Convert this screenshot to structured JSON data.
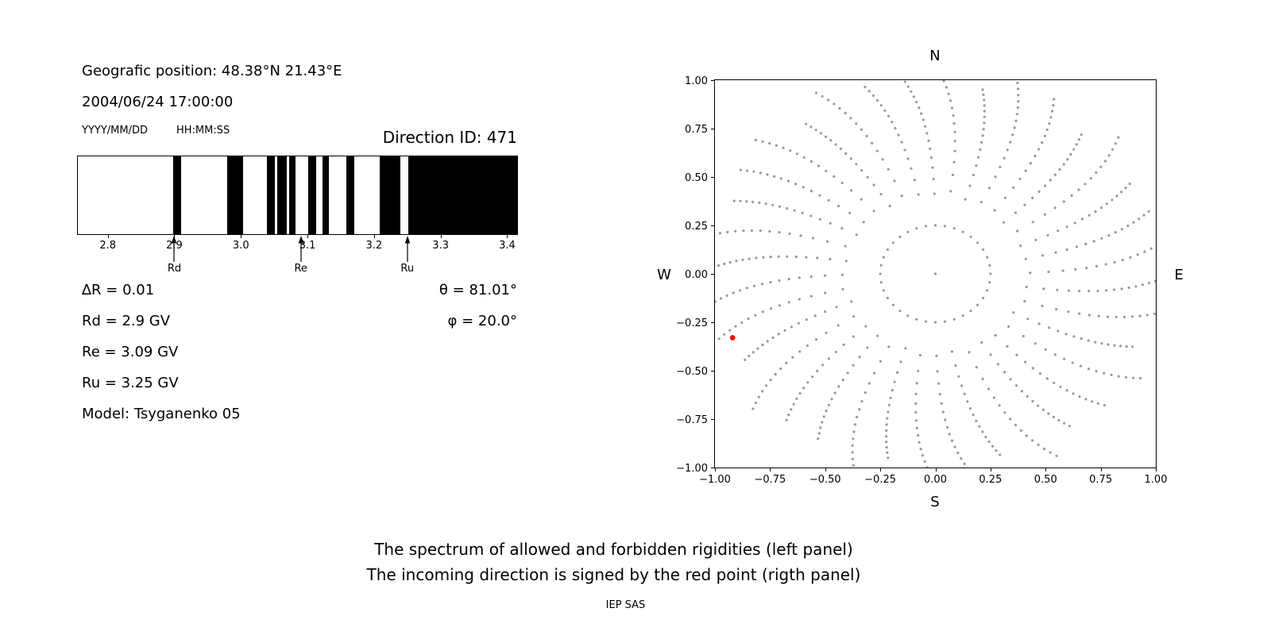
{
  "header": {
    "geo_position": "Geografic position: 48.38°N 21.43°E",
    "datetime": "2004/06/24 17:00:00",
    "date_format_label": "YYYY/MM/DD",
    "time_format_label": "HH:MM:SS",
    "direction_id_label": "Direction ID: 471"
  },
  "parameters": {
    "delta_r": "∆R = 0.01",
    "rd": "Rd = 2.9 GV",
    "re": "Re = 3.09 GV",
    "ru": "Ru = 3.25 GV",
    "model": "Model: Tsyganenko 05",
    "theta": "θ = 81.01°",
    "phi": "φ = 20.0°"
  },
  "captions": {
    "line1": "The spectrum of allowed and forbidden rigidities (left panel)",
    "line2": "The incoming direction is signed by the red point (rigth panel)",
    "credit": "IEP SAS"
  },
  "chart_data": [
    {
      "type": "bar",
      "name": "rigidity-spectrum",
      "description": "Spectrum of allowed (black) and forbidden (white) rigidities in GV",
      "xlim": [
        2.755,
        3.415
      ],
      "xtick_values": [
        2.8,
        2.9,
        3.0,
        3.1,
        3.2,
        3.3,
        3.4
      ],
      "xticks": [
        "2.8",
        "2.9",
        "3.0",
        "3.1",
        "3.2",
        "3.3",
        "3.4"
      ],
      "allowed_intervals": [
        [
          2.898,
          2.91
        ],
        [
          2.979,
          3.003
        ],
        [
          3.039,
          3.051
        ],
        [
          3.055,
          3.069
        ],
        [
          3.072,
          3.082
        ],
        [
          3.101,
          3.113
        ],
        [
          3.122,
          3.132
        ],
        [
          3.158,
          3.17
        ],
        [
          3.208,
          3.239
        ],
        [
          3.252,
          3.415
        ]
      ],
      "markers": [
        {
          "label": "Rd",
          "value": 2.9
        },
        {
          "label": "Re",
          "value": 3.09
        },
        {
          "label": "Ru",
          "value": 3.25
        }
      ],
      "bar_color": "#000000"
    },
    {
      "type": "scatter",
      "name": "asymptotic-direction-map",
      "description": "Gray dots: asymptotic direction traces in 36 radial spokes; red dot marks the incoming direction",
      "xlim": [
        -1,
        1
      ],
      "ylim": [
        -1,
        1
      ],
      "xticks": [
        "−1.00",
        "−0.75",
        "−0.50",
        "−0.25",
        "0.00",
        "0.25",
        "0.50",
        "0.75",
        "1.00"
      ],
      "yticks": [
        "1.00",
        "0.75",
        "0.50",
        "0.25",
        "0.00",
        "−0.25",
        "−0.50",
        "−0.75",
        "−1.00"
      ],
      "compass": {
        "top": "N",
        "bottom": "S",
        "left": "W",
        "right": "E"
      },
      "dot_color": "#999999",
      "center_point": {
        "x": 0.0,
        "y": 0.0
      },
      "red_point": {
        "x": -0.92,
        "y": -0.33,
        "color": "#ff0000"
      },
      "spoke_pattern": {
        "count": 36,
        "start_angle_deg": 0,
        "step_deg": 10,
        "r_inner": 0.25,
        "r_outer_base": 1.03,
        "r_outer_variation": 0.06,
        "points_per_spoke": 17,
        "density_gamma": 0.55,
        "twist_linear": 0.06,
        "twist_cubic": 0.22
      }
    }
  ]
}
